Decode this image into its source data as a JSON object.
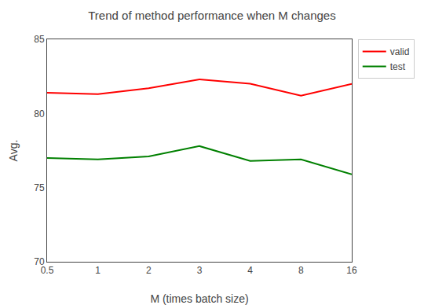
{
  "chart_data": {
    "type": "line",
    "title": "Trend of method performance when M changes",
    "x_label": "M (times batch size)",
    "y_label": "Avg.",
    "categories": [
      "0.5",
      "1",
      "2",
      "3",
      "4",
      "8",
      "16"
    ],
    "series": [
      {
        "name": "valid",
        "color": "#ff0000",
        "values": [
          81.4,
          81.3,
          81.7,
          82.3,
          82.0,
          81.2,
          82.0
        ]
      },
      {
        "name": "test",
        "color": "#008000",
        "values": [
          77.0,
          76.9,
          77.1,
          77.8,
          76.8,
          76.9,
          75.9
        ]
      }
    ],
    "ylim": [
      70,
      85
    ],
    "yticks": [
      70,
      75,
      80,
      85
    ],
    "grid": false,
    "legend": "upper right"
  }
}
